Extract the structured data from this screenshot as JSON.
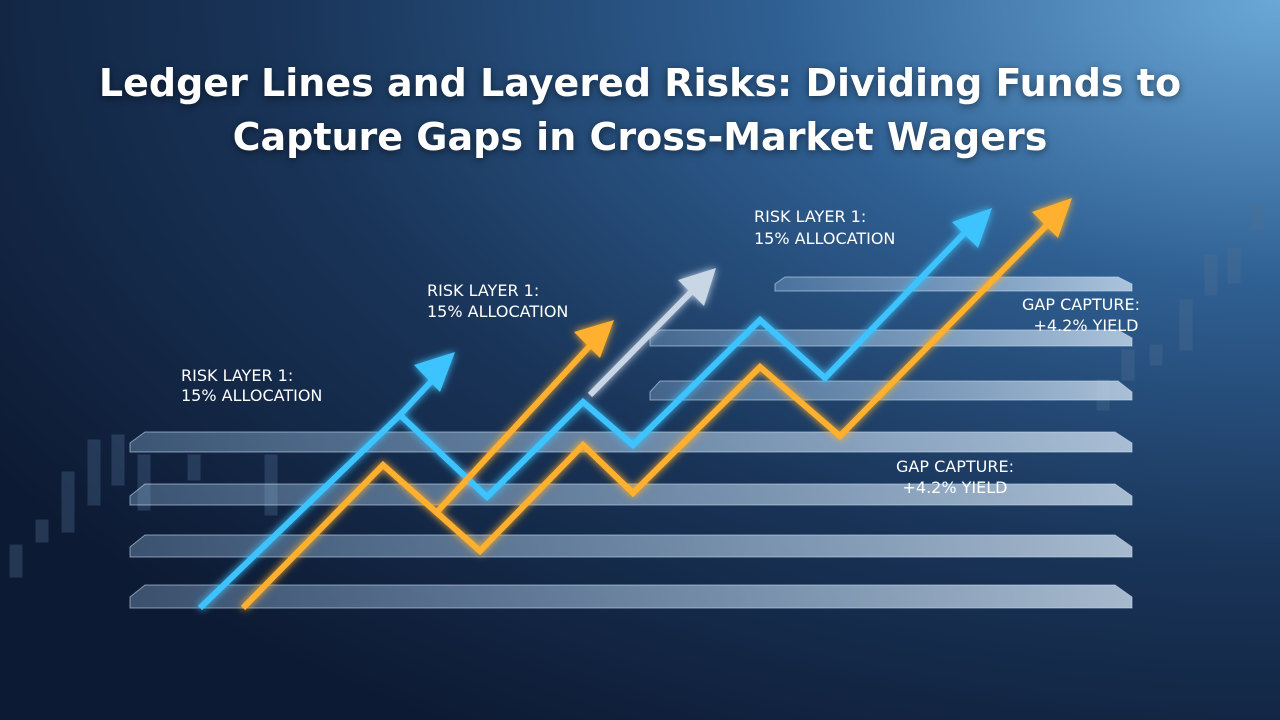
{
  "header": {
    "title": "Ledger Lines and Layered Risks: Dividing Funds to Capture Gaps in Cross-Market Wagers"
  },
  "annotations": [
    {
      "lines": [
        "RISK LAYER 1:",
        "15% ALLOCATION"
      ]
    },
    {
      "lines": [
        "RISK LAYER 1:",
        "15% ALLOCATION"
      ]
    },
    {
      "lines": [
        "RISK LAYER 1:",
        "15% ALLOCATION"
      ]
    },
    {
      "lines": [
        "GAP CAPTURE:",
        "+4.2% YIELD"
      ]
    },
    {
      "lines": [
        "GAP CAPTURE:",
        "+4.2% YIELD"
      ]
    }
  ]
}
